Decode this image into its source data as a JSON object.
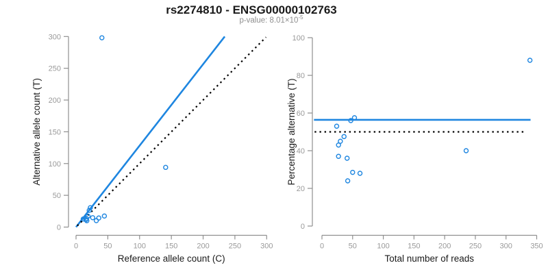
{
  "header": {
    "title": "rs2274810 - ENSG00000102763",
    "pvalue_label": "p-value: ",
    "pvalue_base": "8.01×10",
    "pvalue_exponent": "-5"
  },
  "colors": {
    "accent_blue": "#1E86E0",
    "dotted_black": "#000000",
    "axis_gray": "#8f8f8f",
    "tick_label_gray": "#999999",
    "axis_title_black": "#1a1a1a"
  },
  "chart_data": [
    {
      "type": "scatter",
      "title": "",
      "xlabel": "Reference allele count (C)",
      "ylabel": "Alternative allele count (T)",
      "xlim": [
        0,
        300
      ],
      "ylim": [
        0,
        300
      ],
      "xticks": [
        0,
        50,
        100,
        150,
        200,
        250,
        300
      ],
      "yticks": [
        0,
        50,
        100,
        150,
        200,
        250,
        300
      ],
      "grid": false,
      "legend": "none",
      "points": [
        [
          22.5,
          30.5
        ],
        [
          20.7,
          26.3
        ],
        [
          11.3,
          12.7
        ],
        [
          18.9,
          17.1
        ],
        [
          16.5,
          13.5
        ],
        [
          15.4,
          11.6
        ],
        [
          17.0,
          10.0
        ],
        [
          26.2,
          14.8
        ],
        [
          35.8,
          14.3
        ],
        [
          44.6,
          17.4
        ],
        [
          31.9,
          10.1
        ],
        [
          141,
          94
        ],
        [
          40.7,
          298
        ]
      ],
      "lines": [
        {
          "name": "regression-line",
          "style": "solid",
          "color_key": "accent_blue",
          "from": [
            0,
            0
          ],
          "to": [
            234,
            300
          ]
        },
        {
          "name": "identity-line",
          "style": "dotted",
          "color_key": "dotted_black",
          "from": [
            2,
            2
          ],
          "to": [
            299,
            299
          ]
        }
      ]
    },
    {
      "type": "scatter",
      "title": "",
      "xlabel": "Total number of reads",
      "ylabel": "Percentage alternative (T)",
      "xlim": [
        0,
        350
      ],
      "ylim": [
        0,
        100
      ],
      "xticks": [
        0,
        50,
        100,
        150,
        200,
        250,
        300,
        350
      ],
      "yticks": [
        0,
        20,
        40,
        60,
        80,
        100
      ],
      "grid": false,
      "legend": "none",
      "points": [
        [
          53,
          57.5
        ],
        [
          47,
          56
        ],
        [
          24,
          53
        ],
        [
          36,
          47.5
        ],
        [
          30,
          45
        ],
        [
          27,
          43
        ],
        [
          27,
          37
        ],
        [
          41,
          36
        ],
        [
          50,
          28.5
        ],
        [
          62,
          28
        ],
        [
          42,
          24
        ],
        [
          235,
          40
        ],
        [
          339,
          88
        ]
      ],
      "lines": [
        {
          "name": "mean-percentage-line",
          "style": "solid",
          "color_key": "accent_blue",
          "from": [
            -13,
            56.4
          ],
          "to": [
            340,
            56.4
          ]
        },
        {
          "name": "fifty-percent-line",
          "style": "dotted",
          "color_key": "dotted_black",
          "from": [
            -12,
            50
          ],
          "to": [
            333,
            50
          ]
        }
      ]
    }
  ]
}
